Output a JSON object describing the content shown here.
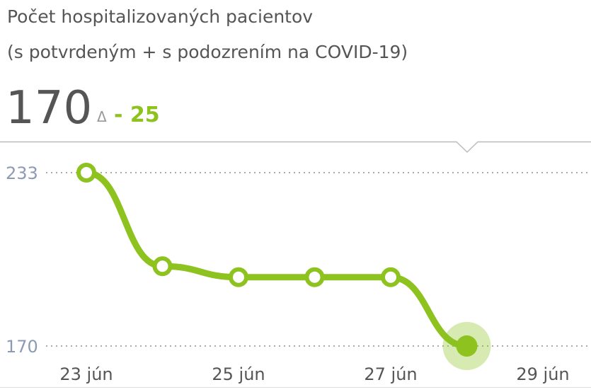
{
  "chart_data": {
    "type": "line",
    "title": "Počet hospitalizovaných pacientov",
    "subtitle": "(s  potvrdeným + s podozrením na COVID-19)",
    "current_value": 170,
    "delta_symbol": "Δ",
    "delta": {
      "value": -25,
      "label": "- 25"
    },
    "categories": [
      "23 jún",
      null,
      "25 jún",
      null,
      "27 jún",
      null,
      "29 jún"
    ],
    "series": [
      {
        "color": "#8dc21f",
        "values": [
          233,
          199,
          195,
          195,
          195,
          170,
          null
        ]
      }
    ],
    "ylim": [
      170,
      233
    ],
    "yticks": [
      170,
      233
    ],
    "grid": true
  }
}
